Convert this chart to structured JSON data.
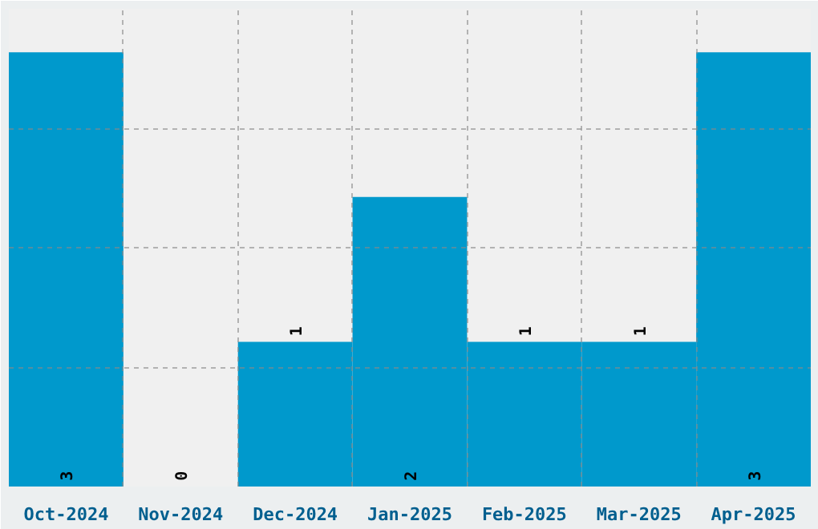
{
  "chart_data": {
    "type": "bar",
    "categories": [
      "Oct-2024",
      "Nov-2024",
      "Dec-2024",
      "Jan-2025",
      "Feb-2025",
      "Mar-2025",
      "Apr-2025"
    ],
    "values": [
      3,
      0,
      1,
      2,
      1,
      1,
      3
    ],
    "color": "#0099cc",
    "ylim": [
      0,
      3.3
    ],
    "yticks": [
      {
        "value": 0.825,
        "label": null
      },
      {
        "value": 1.65,
        "label": null
      },
      {
        "value": 2.475,
        "label": null
      }
    ],
    "grid": true,
    "tick_labels": "x",
    "data_labels": true
  }
}
